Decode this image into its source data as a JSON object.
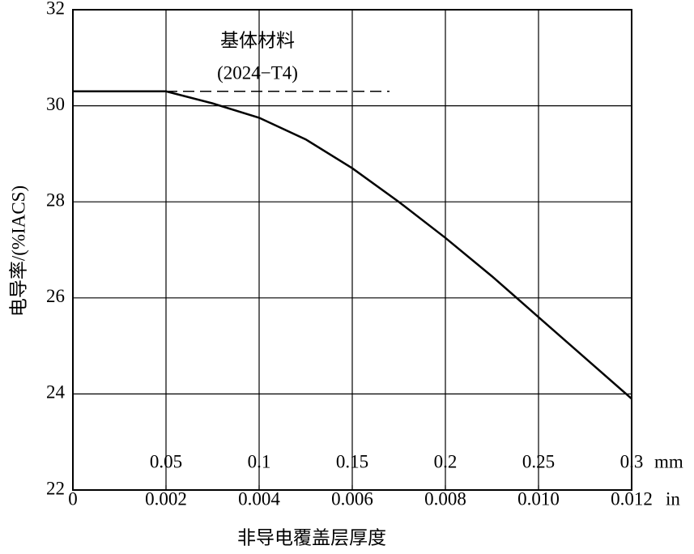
{
  "chart_data": {
    "type": "line",
    "ylabel": "电导率/(%IACS)",
    "xlabel": "非导电覆盖层厚度",
    "x_unit": "mm",
    "x2_unit": "in",
    "x": [
      0,
      0.05,
      0.075,
      0.1,
      0.125,
      0.15,
      0.175,
      0.2,
      0.225,
      0.25,
      0.275,
      0.3
    ],
    "series": [
      {
        "color": "#000000",
        "values": [
          30.3,
          30.3,
          30.05,
          29.75,
          29.3,
          28.7,
          28.0,
          27.25,
          26.45,
          25.6,
          24.75,
          23.9
        ]
      }
    ],
    "xlim": [
      0,
      0.3
    ],
    "xticks": [
      0.05,
      0.1,
      0.15,
      0.2,
      0.25,
      0.3
    ],
    "x2lim": [
      0,
      0.012
    ],
    "x2ticks": [
      0,
      0.002,
      0.004,
      0.006,
      0.008,
      {
        "value": 0.01,
        "label": "0.010"
      },
      0.012
    ],
    "ylim": [
      22,
      32
    ],
    "yticks": [
      22,
      24,
      26,
      28,
      30,
      32
    ],
    "grid": true,
    "reference_line": {
      "y": 30.3,
      "x": [
        0.05,
        0.17
      ]
    },
    "annotation": [
      "基体材料",
      "(2024−T4)"
    ]
  }
}
